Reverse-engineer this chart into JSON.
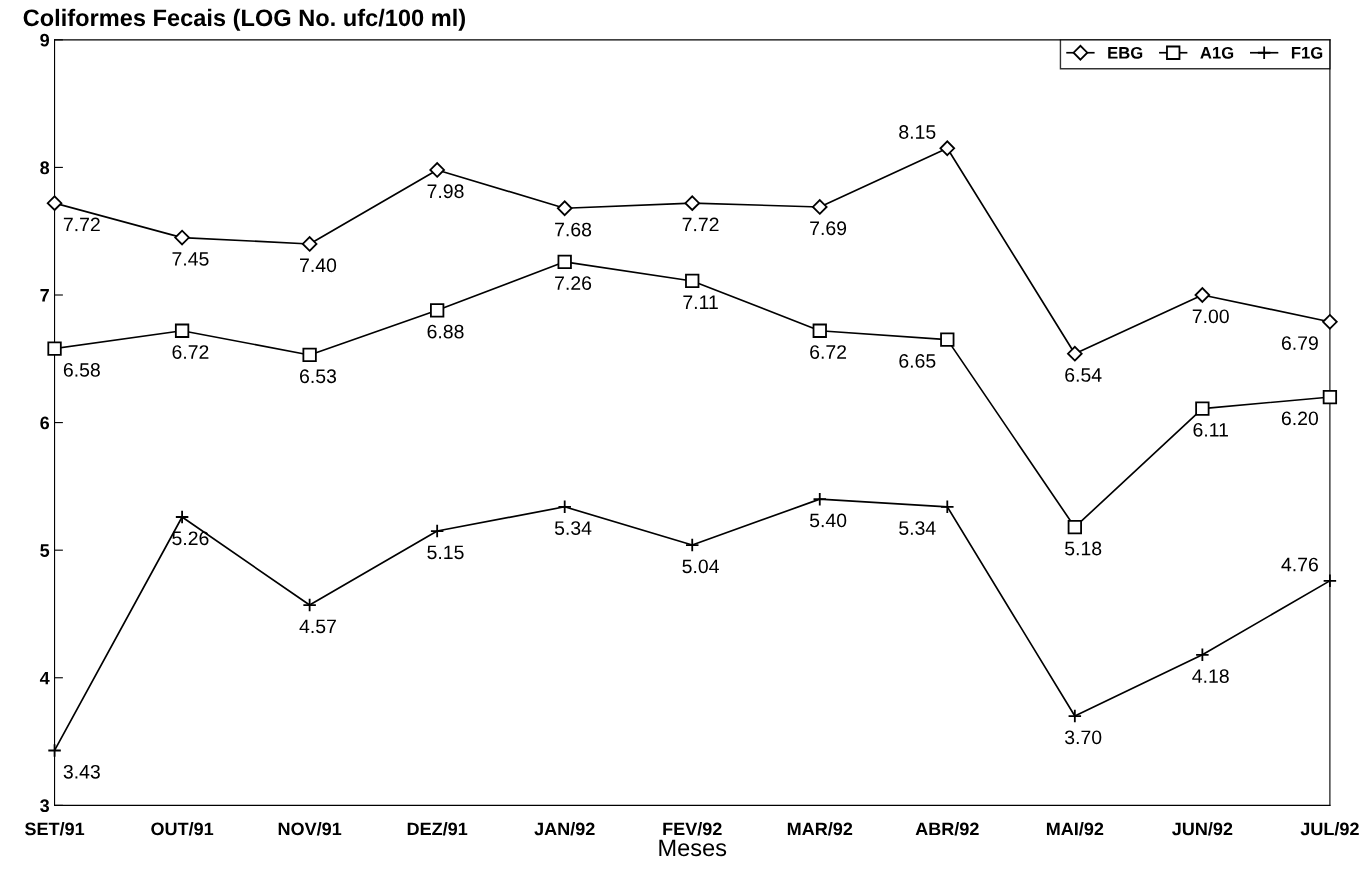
{
  "chart_data": {
    "type": "line",
    "title": "Coliformes Fecais (LOG No. ufc/100 ml)",
    "xlabel": "Meses",
    "categories": [
      "SET/91",
      "OUT/91",
      "NOV/91",
      "DEZ/91",
      "JAN/92",
      "FEV/92",
      "MAR/92",
      "ABR/92",
      "MAI/92",
      "JUN/92",
      "JUL/92"
    ],
    "series": [
      {
        "name": "EBG",
        "color": "#000000",
        "marker": "diamond",
        "values": [
          7.72,
          7.45,
          7.4,
          7.98,
          7.68,
          7.72,
          7.69,
          8.15,
          6.54,
          7.0,
          6.79
        ],
        "value_labels": [
          "7.72",
          "7.45",
          "7.40",
          "7.98",
          "7.68",
          "7.72",
          "7.69",
          "8.15",
          "6.54",
          "7.00",
          "6.79"
        ]
      },
      {
        "name": "A1G",
        "color": "#000000",
        "marker": "square",
        "values": [
          6.58,
          6.72,
          6.53,
          6.88,
          7.26,
          7.11,
          6.72,
          6.65,
          5.18,
          6.11,
          6.2
        ],
        "value_labels": [
          "6.58",
          "6.72",
          "6.53",
          "6.88",
          "7.26",
          "7.11",
          "6.72",
          "6.65",
          "5.18",
          "6.11",
          "6.20"
        ]
      },
      {
        "name": "F1G",
        "color": "#000000",
        "marker": "cross",
        "values": [
          3.43,
          5.26,
          4.57,
          5.15,
          5.34,
          5.04,
          5.4,
          5.34,
          3.7,
          4.18,
          4.76
        ],
        "value_labels": [
          "3.43",
          "5.26",
          "4.57",
          "5.15",
          "5.34",
          "5.04",
          "5.40",
          "5.34",
          "3.70",
          "4.18",
          "4.76"
        ]
      }
    ],
    "ylim": [
      3,
      9
    ],
    "yticks": [
      3,
      4,
      5,
      6,
      7,
      8,
      9
    ],
    "grid": false,
    "legend": "top right",
    "line_style": "solid"
  }
}
